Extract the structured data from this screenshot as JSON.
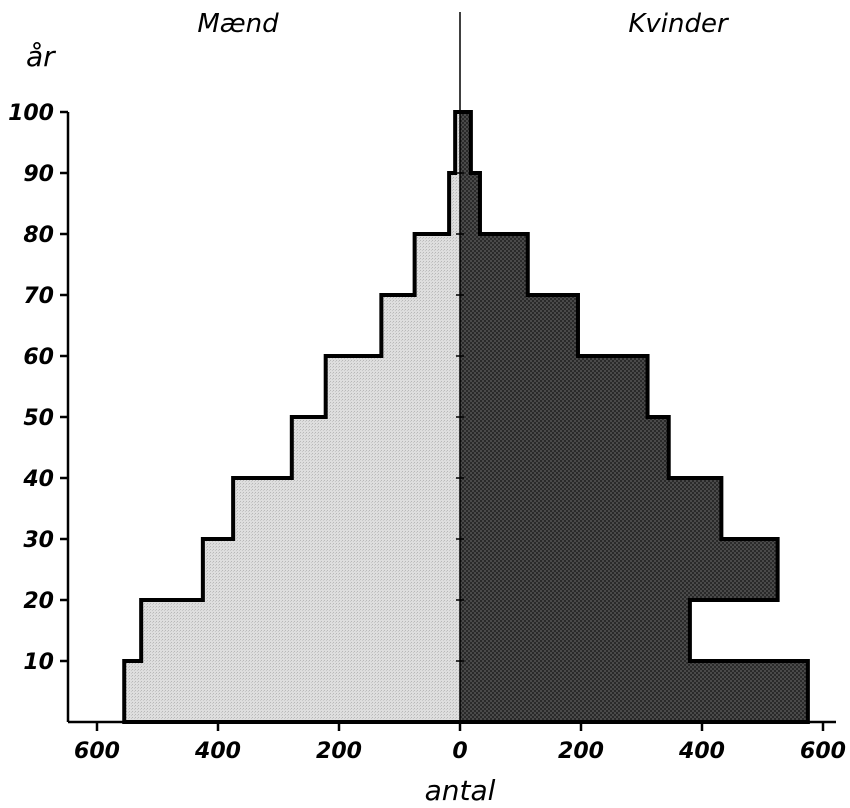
{
  "chart_data": {
    "type": "bar",
    "orientation": "horizontal",
    "layout": "population pyramid",
    "ylabel": "år",
    "xlabel": "antal",
    "side_labels": {
      "left": "Mænd",
      "right": "Kvinder"
    },
    "y_ticks": [
      "10",
      "20",
      "30",
      "40",
      "50",
      "60",
      "70",
      "80",
      "90",
      "100"
    ],
    "x_ticks": [
      "600",
      "400",
      "200",
      "0",
      "200",
      "400",
      "600"
    ],
    "ylim": [
      0,
      100
    ],
    "xlim": [
      -600,
      600
    ],
    "categories": [
      "0-10",
      "10-20",
      "20-30",
      "30-40",
      "40-50",
      "50-60",
      "60-70",
      "70-80",
      "80-90",
      "90-100"
    ],
    "series": [
      {
        "name": "Mænd",
        "values": [
          555,
          527,
          425,
          375,
          278,
          222,
          130,
          75,
          18,
          8
        ],
        "color": "#cfcfcf"
      },
      {
        "name": "Kvinder",
        "values": [
          575,
          380,
          525,
          432,
          345,
          310,
          195,
          112,
          33,
          18
        ],
        "color": "#4a4a4a"
      }
    ],
    "grid": false
  }
}
